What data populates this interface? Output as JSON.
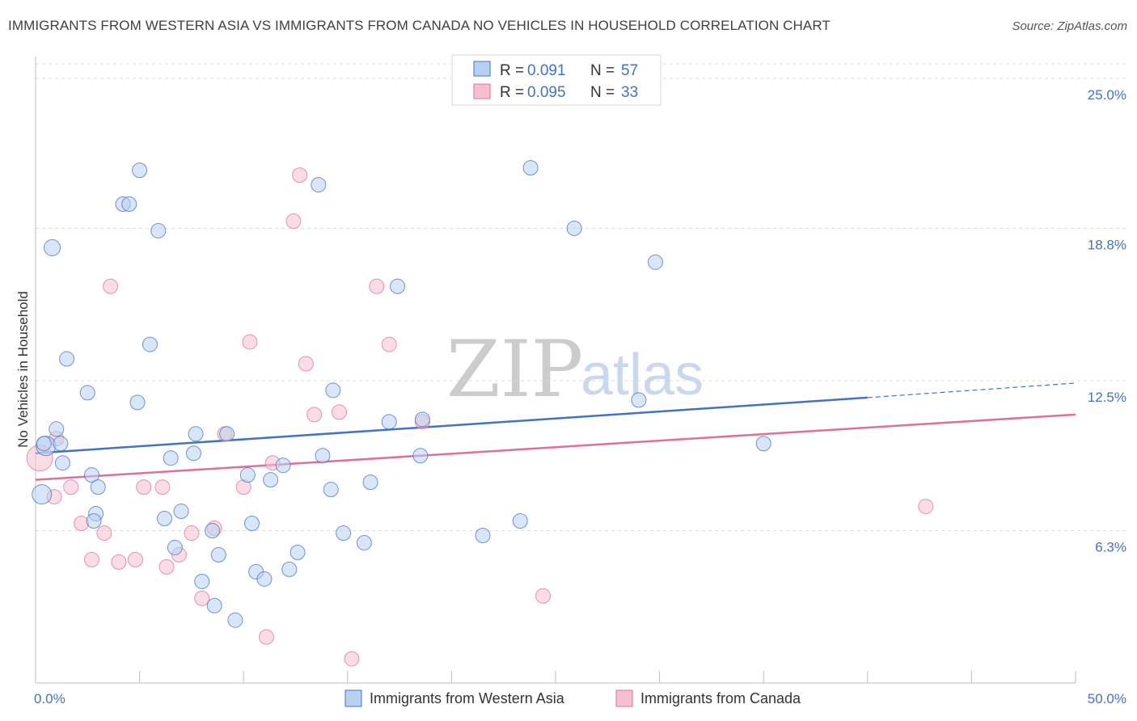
{
  "title": "IMMIGRANTS FROM WESTERN ASIA VS IMMIGRANTS FROM CANADA NO VEHICLES IN HOUSEHOLD CORRELATION CHART",
  "source": "Source: ZipAtlas.com",
  "watermark": {
    "zip": "ZIP",
    "atlas": "atlas"
  },
  "colors": {
    "blue": "#4472c4",
    "blue_fill": "#b8d1f0",
    "pink": "#e07099",
    "pink_fill": "#f5bfd0"
  },
  "legend": {
    "rows": [
      {
        "r_label": "R = ",
        "r_value": "0.091",
        "n_label": "N = ",
        "n_value": "57"
      },
      {
        "r_label": "R = ",
        "r_value": "0.095",
        "n_label": "N = ",
        "n_value": "33"
      }
    ]
  },
  "chart_data": {
    "type": "scatter",
    "title": "IMMIGRANTS FROM WESTERN ASIA VS IMMIGRANTS FROM CANADA NO VEHICLES IN HOUSEHOLD CORRELATION CHART",
    "xlabel": "",
    "ylabel": "No Vehicles in Household",
    "xlim": [
      0,
      50
    ],
    "ylim": [
      0,
      25.9
    ],
    "x_tick_labels": [
      "0.0%",
      "50.0%"
    ],
    "y_ticks": [
      6.3,
      12.5,
      18.8,
      25.0
    ],
    "y_tick_labels": [
      "6.3%",
      "12.5%",
      "18.8%",
      "25.0%"
    ],
    "grid": true,
    "legend_position": "top-center",
    "series": [
      {
        "name": "Immigrants from Western Asia",
        "color": "#4472c4",
        "r": 0.091,
        "n": 57,
        "trend": {
          "x0": 0,
          "y0": 9.5,
          "x1": 40,
          "y1": 11.8,
          "dashed_to_x": 50,
          "dashed_to_y": 12.4
        },
        "points": [
          [
            0.3,
            7.8,
            12
          ],
          [
            0.5,
            9.8,
            12
          ],
          [
            0.8,
            18.0,
            10
          ],
          [
            1.0,
            10.5,
            9
          ],
          [
            1.2,
            9.9,
            9
          ],
          [
            1.3,
            9.1,
            9
          ],
          [
            1.5,
            13.4,
            9
          ],
          [
            2.5,
            12.0,
            9
          ],
          [
            2.7,
            8.6,
            9
          ],
          [
            3.0,
            8.1,
            9
          ],
          [
            2.9,
            7.0,
            9
          ],
          [
            2.8,
            6.7,
            9
          ],
          [
            4.2,
            19.8,
            9
          ],
          [
            4.5,
            19.8,
            9
          ],
          [
            5.0,
            21.2,
            9
          ],
          [
            4.9,
            11.6,
            9
          ],
          [
            5.5,
            14.0,
            9
          ],
          [
            5.9,
            18.7,
            9
          ],
          [
            6.2,
            6.8,
            9
          ],
          [
            6.5,
            9.3,
            9
          ],
          [
            6.7,
            5.6,
            9
          ],
          [
            7.0,
            7.1,
            9
          ],
          [
            7.6,
            9.5,
            9
          ],
          [
            7.7,
            10.3,
            9
          ],
          [
            8.0,
            4.2,
            9
          ],
          [
            8.5,
            6.3,
            9
          ],
          [
            8.6,
            3.2,
            9
          ],
          [
            8.8,
            5.3,
            9
          ],
          [
            9.2,
            10.3,
            9
          ],
          [
            9.6,
            2.6,
            9
          ],
          [
            10.2,
            8.6,
            9
          ],
          [
            10.4,
            6.6,
            9
          ],
          [
            10.6,
            4.6,
            9
          ],
          [
            11.0,
            4.3,
            9
          ],
          [
            11.3,
            8.4,
            9
          ],
          [
            11.9,
            9.0,
            9
          ],
          [
            12.2,
            4.7,
            9
          ],
          [
            12.6,
            5.4,
            9
          ],
          [
            13.6,
            20.6,
            9
          ],
          [
            13.8,
            9.4,
            9
          ],
          [
            14.3,
            12.1,
            9
          ],
          [
            14.2,
            8.0,
            9
          ],
          [
            14.8,
            6.2,
            9
          ],
          [
            15.8,
            5.8,
            9
          ],
          [
            16.1,
            8.3,
            9
          ],
          [
            17.0,
            10.8,
            9
          ],
          [
            17.4,
            16.4,
            9
          ],
          [
            18.6,
            10.9,
            9
          ],
          [
            18.5,
            9.4,
            9
          ],
          [
            21.5,
            6.1,
            9
          ],
          [
            23.3,
            6.7,
            9
          ],
          [
            23.8,
            21.3,
            9
          ],
          [
            25.9,
            18.8,
            9
          ],
          [
            29.0,
            11.7,
            9
          ],
          [
            29.8,
            17.4,
            9
          ],
          [
            35.0,
            9.9,
            9
          ],
          [
            0.4,
            9.9,
            9
          ]
        ]
      },
      {
        "name": "Immigrants from Canada",
        "color": "#e07099",
        "r": 0.095,
        "n": 33,
        "trend": {
          "x0": 0,
          "y0": 8.4,
          "x1": 50,
          "y1": 11.1
        },
        "points": [
          [
            0.2,
            9.3,
            16
          ],
          [
            0.9,
            7.7,
            9
          ],
          [
            1.0,
            10.1,
            9
          ],
          [
            1.7,
            8.1,
            9
          ],
          [
            2.2,
            6.6,
            9
          ],
          [
            2.7,
            5.1,
            9
          ],
          [
            3.3,
            6.2,
            9
          ],
          [
            3.6,
            16.4,
            9
          ],
          [
            4.0,
            5.0,
            9
          ],
          [
            4.8,
            5.1,
            9
          ],
          [
            5.2,
            8.1,
            9
          ],
          [
            6.1,
            8.1,
            9
          ],
          [
            6.3,
            4.8,
            9
          ],
          [
            6.9,
            5.3,
            9
          ],
          [
            7.5,
            6.2,
            9
          ],
          [
            8.0,
            3.5,
            9
          ],
          [
            8.6,
            6.4,
            9
          ],
          [
            9.1,
            10.3,
            9
          ],
          [
            10.0,
            8.1,
            9
          ],
          [
            10.3,
            14.1,
            9
          ],
          [
            11.1,
            1.9,
            9
          ],
          [
            11.4,
            9.1,
            9
          ],
          [
            12.4,
            19.1,
            9
          ],
          [
            12.7,
            21.0,
            9
          ],
          [
            13.0,
            13.2,
            9
          ],
          [
            13.4,
            11.1,
            9
          ],
          [
            14.6,
            11.2,
            9
          ],
          [
            15.2,
            1.0,
            9
          ],
          [
            16.4,
            16.4,
            9
          ],
          [
            17.0,
            14.0,
            9
          ],
          [
            18.6,
            10.8,
            9
          ],
          [
            24.4,
            3.6,
            9
          ],
          [
            42.8,
            7.3,
            9
          ]
        ]
      }
    ]
  }
}
